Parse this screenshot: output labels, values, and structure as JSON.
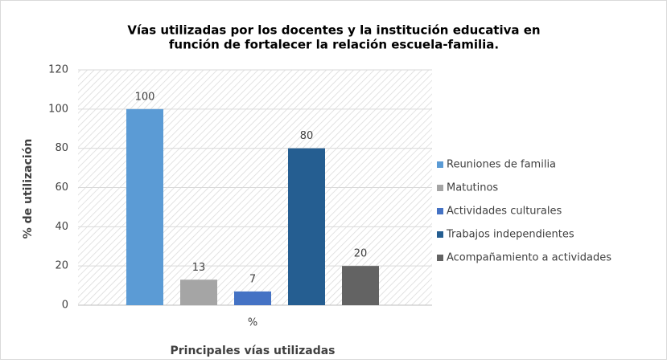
{
  "chart_data": {
    "type": "bar",
    "title": [
      "Vías utilizadas por los docentes y la institución educativa en",
      "función de fortalecer la relación escuela-familia."
    ],
    "categories": [
      "%"
    ],
    "series": [
      {
        "name": "Reuniones de familia",
        "color": "#5b9bd5",
        "values": [
          100
        ]
      },
      {
        "name": "Matutinos",
        "color": "#a5a5a5",
        "values": [
          13
        ]
      },
      {
        "name": "Actividades culturales",
        "color": "#4472c4",
        "values": [
          7
        ]
      },
      {
        "name": "Trabajos independientes",
        "color": "#255e91",
        "values": [
          80
        ]
      },
      {
        "name": "Acompañamiento a actividades",
        "color": "#636363",
        "values": [
          20
        ]
      }
    ],
    "ylabel": "% de utilización",
    "xlabel": "Principales vías utilizadas",
    "ylim": [
      0,
      120
    ],
    "yticks": [
      0,
      20,
      40,
      60,
      80,
      100,
      120
    ],
    "grid": true,
    "legend": "right"
  }
}
